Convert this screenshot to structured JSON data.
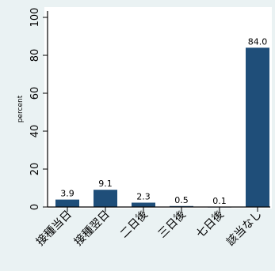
{
  "chart_data": {
    "type": "bar",
    "categories": [
      "接種当日",
      "接種翌日",
      "二日後",
      "三日後",
      "七日後",
      "該当なし"
    ],
    "values": [
      3.9,
      9.1,
      2.3,
      0.5,
      0.1,
      84.0
    ],
    "value_labels": [
      "3.9",
      "9.1",
      "2.3",
      "0.5",
      "0.1",
      "84.0"
    ],
    "title": "",
    "xlabel": "",
    "ylabel": "percent",
    "ylim": [
      0,
      100
    ],
    "y_ticks": [
      0,
      20,
      40,
      60,
      80,
      100
    ],
    "grid": false,
    "colors": {
      "bar": "#1f4e79",
      "plot_background": "#ffffff",
      "outer_background": "#eaf2f3",
      "axis": "#000000"
    }
  }
}
